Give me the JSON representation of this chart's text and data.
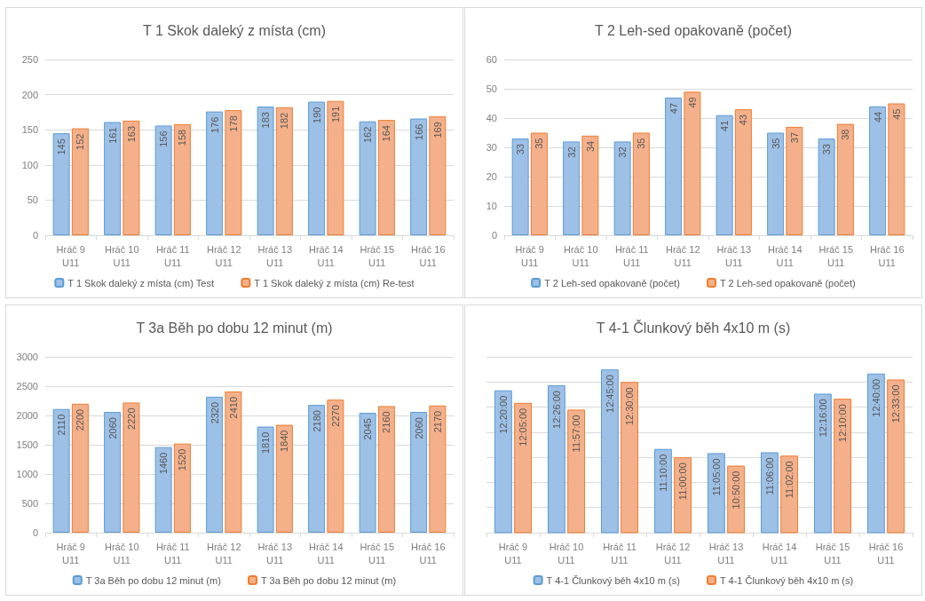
{
  "chart_data": [
    {
      "type": "bar",
      "title": "T 1 Skok daleký z místa (cm)",
      "categories": [
        "Hráč 9\nU11",
        "Hráč 10\nU11",
        "Hráč 11\nU11",
        "Hráč 12\nU11",
        "Hráč 13\nU11",
        "Hráč 14\nU11",
        "Hráč 15\nU11",
        "Hráč 16\nU11"
      ],
      "series": [
        {
          "name": "T 1 Skok daleký z místa (cm) Test",
          "color": "#9dc0e6",
          "values": [
            145,
            161,
            156,
            176,
            183,
            190,
            162,
            166
          ]
        },
        {
          "name": "T 1 Skok daleký z místa (cm) Re-test",
          "color": "#f4b08a",
          "values": [
            152,
            163,
            158,
            178,
            182,
            191,
            164,
            169
          ]
        }
      ],
      "ylim": [
        0,
        250
      ],
      "yticks": [
        0,
        50,
        100,
        150,
        200,
        250
      ],
      "grid": "y",
      "legend": "bottom",
      "data_labels": true
    },
    {
      "type": "bar",
      "title": "T 2 Leh-sed opakovaně (počet)",
      "categories": [
        "Hráč 9\nU11",
        "Hráč 10\nU11",
        "Hráč 11\nU11",
        "Hráč 12\nU11",
        "Hráč 13\nU11",
        "Hráč 14\nU11",
        "Hráč 15\nU11",
        "Hráč 16\nU11"
      ],
      "series": [
        {
          "name": "T 2 Leh-sed opakovaně (počet)",
          "color": "#9dc0e6",
          "values": [
            33,
            32,
            32,
            47,
            41,
            35,
            33,
            44
          ]
        },
        {
          "name": "T 2 Leh-sed opakovaně (počet)",
          "color": "#f4b08a",
          "values": [
            35,
            34,
            35,
            49,
            43,
            37,
            38,
            45
          ]
        }
      ],
      "ylim": [
        0,
        60
      ],
      "yticks": [
        0,
        10,
        20,
        30,
        40,
        50,
        60
      ],
      "grid": "y",
      "legend": "bottom",
      "data_labels": true
    },
    {
      "type": "bar",
      "title": "T 3a Běh po dobu 12 minut (m)",
      "categories": [
        "Hráč 9\nU11",
        "Hráč 10\nU11",
        "Hráč 11\nU11",
        "Hráč 12\nU11",
        "Hráč 13\nU11",
        "Hráč 14\nU11",
        "Hráč 15\nU11",
        "Hráč 16\nU11"
      ],
      "series": [
        {
          "name": "T 3a Běh po dobu 12 minut (m)",
          "color": "#9dc0e6",
          "values": [
            2110,
            2060,
            1460,
            2320,
            1810,
            2180,
            2045,
            2060
          ]
        },
        {
          "name": "T 3a Běh po dobu 12 minut (m)",
          "color": "#f4b08a",
          "values": [
            2200,
            2220,
            1520,
            2410,
            1840,
            2270,
            2160,
            2170
          ]
        }
      ],
      "ylim": [
        0,
        3000
      ],
      "yticks": [
        0,
        500,
        1000,
        1500,
        2000,
        2500,
        3000
      ],
      "grid": "y",
      "legend": "bottom",
      "data_labels": true
    },
    {
      "type": "bar",
      "title": "T 4-1 Člunkový běh 4x10 m (s)",
      "categories": [
        "Hráč 9\nU11",
        "Hráč 10\nU11",
        "Hráč 11\nU11",
        "Hráč 12\nU11",
        "Hráč 13\nU11",
        "Hráč 14\nU11",
        "Hráč 15\nU11",
        "Hráč 16\nU11"
      ],
      "series": [
        {
          "name": "T 4-1 Člunkový běh 4x10 m (s)",
          "color": "#9dc0e6",
          "values": [
            44400,
            44760,
            45900,
            40200,
            39900,
            39960,
            44160,
            45600
          ],
          "value_labels": [
            "12:20:00",
            "12:26:00",
            "12:45:00",
            "11:10:00",
            "11:05:00",
            "11:06:00",
            "12:16:00",
            "12:40:00"
          ]
        },
        {
          "name": "T 4-1 Člunkový běh 4x10 m (s)",
          "color": "#f4b08a",
          "values": [
            43500,
            43020,
            45000,
            39600,
            39000,
            39720,
            43800,
            45180
          ],
          "value_labels": [
            "12:05:00",
            "11:57:00",
            "12:30:00",
            "11:00:00",
            "10:50:00",
            "11:02:00",
            "12:10:00",
            "12:33:00"
          ]
        }
      ],
      "ylim": [
        34200,
        46800
      ],
      "yticks": [
        {
          "value": 34200,
          "label": null
        },
        {
          "value": 36000,
          "label": null
        },
        {
          "value": 37800,
          "label": null
        },
        {
          "value": 39600,
          "label": null
        },
        {
          "value": 41400,
          "label": null
        },
        {
          "value": 43200,
          "label": null
        },
        {
          "value": 45000,
          "label": null
        },
        {
          "value": 46800,
          "label": null
        }
      ],
      "grid": "y",
      "legend": "bottom",
      "tick_labels": "x"
    }
  ]
}
